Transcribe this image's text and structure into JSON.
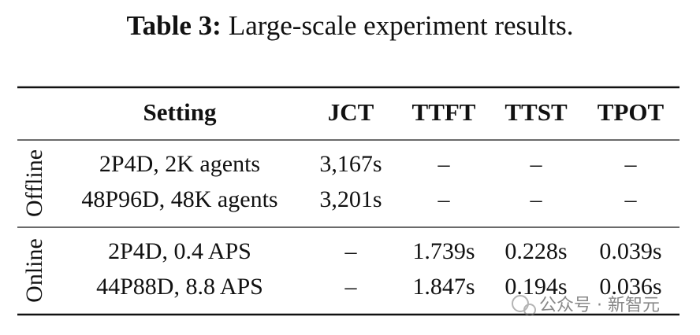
{
  "caption": {
    "label": "Table 3:",
    "text": "Large-scale experiment results."
  },
  "table": {
    "header": [
      "Setting",
      "JCT",
      "TTFT",
      "TTST",
      "TPOT"
    ],
    "groups": [
      {
        "name": "Offline",
        "rows": [
          [
            "2P4D, 2K agents",
            "3,167s",
            "–",
            "–",
            "–"
          ],
          [
            "48P96D, 48K agents",
            "3,201s",
            "–",
            "–",
            "–"
          ]
        ]
      },
      {
        "name": "Online",
        "rows": [
          [
            "2P4D, 0.4 APS",
            "–",
            "1.739s",
            "0.228s",
            "0.039s"
          ],
          [
            "44P88D, 8.8 APS",
            "–",
            "1.847s",
            "0.194s",
            "0.036s"
          ]
        ]
      }
    ]
  },
  "watermark": "公众号 · 新智元"
}
